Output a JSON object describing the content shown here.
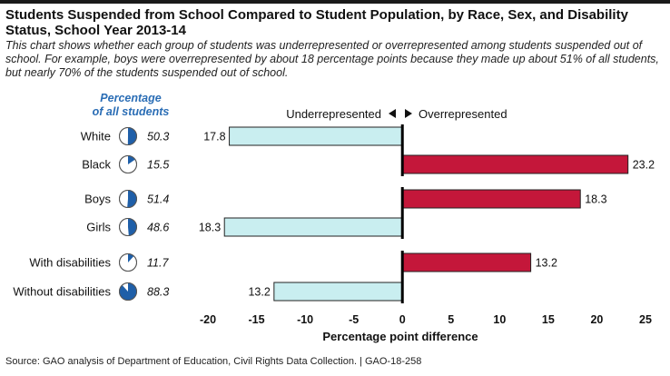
{
  "title": "Students Suspended from School Compared to Student Population, by Race, Sex, and Disability Status, School Year 2013-14",
  "subtitle": "This chart shows whether each group of students was underrepresented or overrepresented among students suspended out of school. For example, boys were overrepresented by about 18 percentage points because they made up about 51% of all students, but nearly 70% of the students suspended out of school.",
  "pct_header_line1": "Percentage",
  "pct_header_line2": "of all students",
  "direction_left": "Underrepresented",
  "direction_right": "Overrepresented",
  "source": "Source: GAO analysis of Department of Education, Civil Rights Data Collection.  |  GAO-18-258",
  "colors": {
    "under": "#c9eef0",
    "over": "#c4173a",
    "pie": "#1f5fa8",
    "accent": "#2a6db5"
  },
  "chart_data": {
    "type": "bar",
    "orientation": "horizontal",
    "categories": [
      "White",
      "Black",
      "Boys",
      "Girls",
      "With disabilities",
      "Without disabilities"
    ],
    "values": [
      -17.8,
      23.2,
      18.3,
      -18.3,
      13.2,
      -13.2
    ],
    "value_labels": [
      "17.8",
      "23.2",
      "18.3",
      "18.3",
      "13.2",
      "13.2"
    ],
    "population_pct": [
      50.3,
      15.5,
      51.4,
      48.6,
      11.7,
      88.3
    ],
    "population_labels": [
      "50.3",
      "15.5",
      "51.4",
      "48.6",
      "11.7",
      "88.3"
    ],
    "xlabel": "Percentage point difference",
    "xlim": [
      -20,
      25
    ],
    "xticks": [
      -20,
      -15,
      -10,
      -5,
      0,
      5,
      10,
      15,
      20,
      25
    ],
    "xtick_labels": [
      "-20",
      "-15",
      "-10",
      "-5",
      "0",
      "5",
      "10",
      "15",
      "20",
      "25"
    ],
    "groups": [
      [
        0,
        1
      ],
      [
        2,
        3
      ],
      [
        4,
        5
      ]
    ],
    "grid": false
  }
}
